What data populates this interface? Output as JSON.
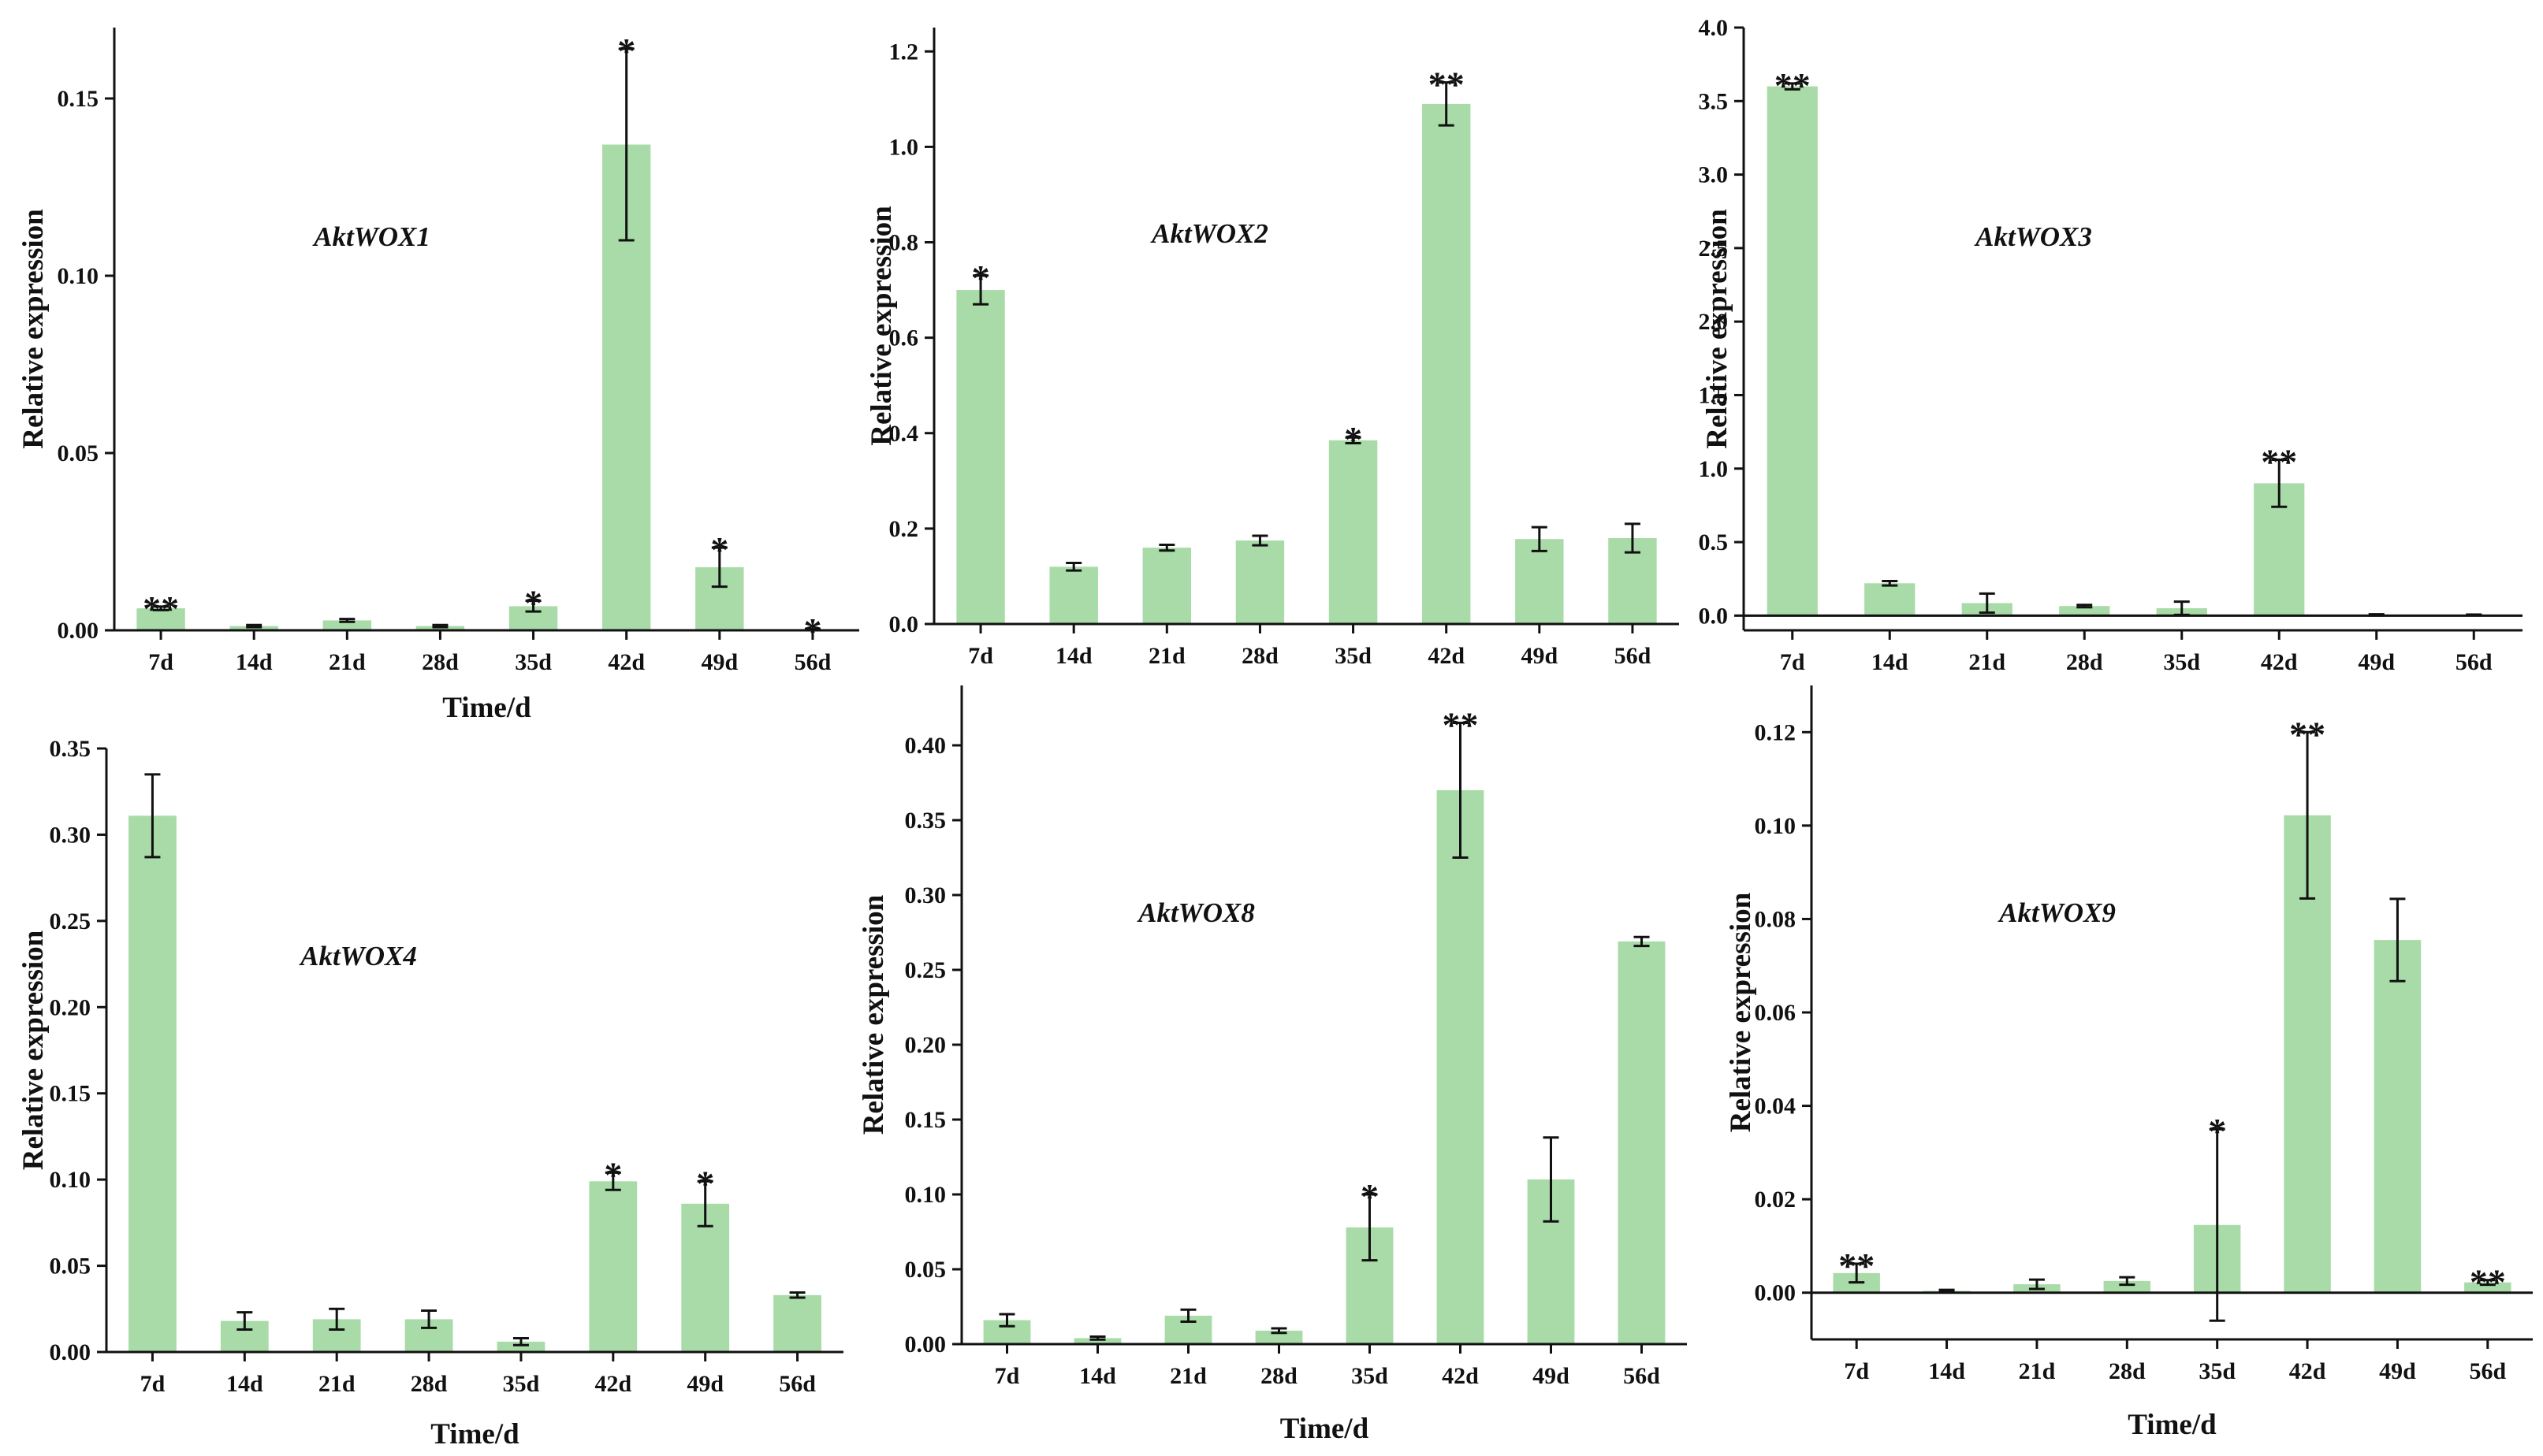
{
  "colors": {
    "bar": "#a8dba7",
    "axis": "#111111"
  },
  "chart_data": [
    {
      "type": "bar",
      "title": "AktWOX1",
      "xlabel": "Time/d",
      "ylabel": "Relative expression",
      "categories": [
        "7d",
        "14d",
        "21d",
        "28d",
        "35d",
        "42d",
        "49d",
        "56d"
      ],
      "values": [
        0.0062,
        0.0012,
        0.0028,
        0.0012,
        0.0068,
        0.137,
        0.0178,
        0.0003
      ],
      "errors": [
        0.0005,
        0.0003,
        0.0004,
        0.0003,
        0.0015,
        0.027,
        0.0055,
        0.0001
      ],
      "significance": [
        "**",
        "",
        "",
        "",
        "*",
        "*",
        "*",
        "*"
      ],
      "ylim": [
        0,
        0.17
      ],
      "yticks": [
        0.0,
        0.05,
        0.1,
        0.15
      ],
      "ytick_labels": [
        "0.00",
        "0.05",
        "0.10",
        "0.15"
      ]
    },
    {
      "type": "bar",
      "title": "AktWOX2",
      "xlabel": "",
      "ylabel": "Relative expression",
      "categories": [
        "7d",
        "14d",
        "21d",
        "28d",
        "35d",
        "42d",
        "49d",
        "56d"
      ],
      "values": [
        0.7,
        0.12,
        0.16,
        0.175,
        0.385,
        1.09,
        0.178,
        0.18
      ],
      "errors": [
        0.03,
        0.008,
        0.006,
        0.01,
        0.006,
        0.045,
        0.025,
        0.03
      ],
      "significance": [
        "*",
        "",
        "",
        "",
        "*",
        "**",
        "",
        ""
      ],
      "ylim": [
        0,
        1.25
      ],
      "yticks": [
        0.0,
        0.2,
        0.4,
        0.6,
        0.8,
        1.0,
        1.2
      ],
      "ytick_labels": [
        "0.0",
        "0.2",
        "0.4",
        "0.6",
        "0.8",
        "1.0",
        "1.2"
      ]
    },
    {
      "type": "bar",
      "title": "AktWOX3",
      "xlabel": "",
      "ylabel": "Relative expression",
      "categories": [
        "7d",
        "14d",
        "21d",
        "28d",
        "35d",
        "42d",
        "49d",
        "56d"
      ],
      "values": [
        3.6,
        0.22,
        0.085,
        0.065,
        0.05,
        0.9,
        0.005,
        0.005
      ],
      "errors": [
        0.02,
        0.015,
        0.065,
        0.008,
        0.045,
        0.16,
        0.004,
        0.002
      ],
      "significance": [
        "**",
        "",
        "",
        "",
        "",
        "**",
        "",
        ""
      ],
      "ylim": [
        -0.1,
        4.0
      ],
      "yticks": [
        0.0,
        0.5,
        1.0,
        1.5,
        2.0,
        2.5,
        3.0,
        3.5,
        4.0
      ],
      "ytick_labels": [
        "0.0",
        "0.5",
        "1.0",
        "1.5",
        "2.0",
        "2.5",
        "3.0",
        "3.5",
        "4.0"
      ]
    },
    {
      "type": "bar",
      "title": "AktWOX4",
      "xlabel": "Time/d",
      "ylabel": "Relative expression",
      "categories": [
        "7d",
        "14d",
        "21d",
        "28d",
        "35d",
        "42d",
        "49d",
        "56d"
      ],
      "values": [
        0.311,
        0.018,
        0.019,
        0.019,
        0.006,
        0.099,
        0.086,
        0.033
      ],
      "errors": [
        0.024,
        0.005,
        0.006,
        0.005,
        0.002,
        0.005,
        0.013,
        0.0015
      ],
      "significance": [
        "",
        "",
        "",
        "",
        "",
        "*",
        "*",
        ""
      ],
      "ylim": [
        0,
        0.35
      ],
      "yticks": [
        0.0,
        0.05,
        0.1,
        0.15,
        0.2,
        0.25,
        0.3,
        0.35
      ],
      "ytick_labels": [
        "0.00",
        "0.05",
        "0.10",
        "0.15",
        "0.20",
        "0.25",
        "0.30",
        "0.35"
      ]
    },
    {
      "type": "bar",
      "title": "AktWOX8",
      "xlabel": "Time/d",
      "ylabel": "Relative expression",
      "categories": [
        "7d",
        "14d",
        "21d",
        "28d",
        "35d",
        "42d",
        "49d",
        "56d"
      ],
      "values": [
        0.016,
        0.004,
        0.019,
        0.009,
        0.078,
        0.37,
        0.11,
        0.269
      ],
      "errors": [
        0.004,
        0.001,
        0.004,
        0.0015,
        0.022,
        0.045,
        0.028,
        0.003
      ],
      "significance": [
        "",
        "",
        "",
        "",
        "*",
        "**",
        "",
        ""
      ],
      "ylim": [
        0,
        0.44
      ],
      "yticks": [
        0.0,
        0.05,
        0.1,
        0.15,
        0.2,
        0.25,
        0.3,
        0.35,
        0.4
      ],
      "ytick_labels": [
        "0.00",
        "0.05",
        "0.10",
        "0.15",
        "0.20",
        "0.25",
        "0.30",
        "0.35",
        "0.40"
      ]
    },
    {
      "type": "bar",
      "title": "AktWOX9",
      "xlabel": "Time/d",
      "ylabel": "Relative expression",
      "categories": [
        "7d",
        "14d",
        "21d",
        "28d",
        "35d",
        "42d",
        "49d",
        "56d"
      ],
      "values": [
        0.0042,
        0.0004,
        0.0018,
        0.0025,
        0.0145,
        0.1022,
        0.0755,
        0.0022
      ],
      "errors": [
        0.002,
        0.0002,
        0.001,
        0.0008,
        0.0205,
        0.0178,
        0.0088,
        0.0005
      ],
      "significance": [
        "**",
        "",
        "",
        "",
        "*",
        "**",
        "",
        "**"
      ],
      "ylim": [
        -0.01,
        0.13
      ],
      "yticks": [
        0.0,
        0.02,
        0.04,
        0.06,
        0.08,
        0.1,
        0.12
      ],
      "ytick_labels": [
        "0.00",
        "0.02",
        "0.04",
        "0.06",
        "0.08",
        "0.10",
        "0.12"
      ]
    }
  ]
}
